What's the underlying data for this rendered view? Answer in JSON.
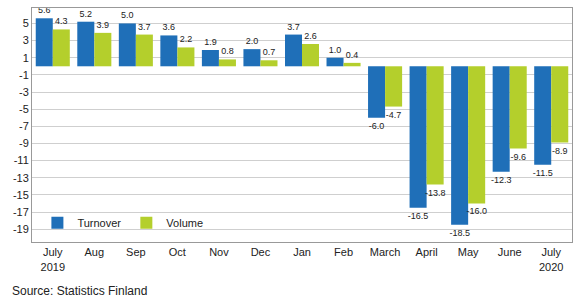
{
  "chart_data": {
    "type": "bar",
    "categories": [
      "July\n2019",
      "Aug",
      "Sep",
      "Oct",
      "Nov",
      "Dec",
      "Jan",
      "Feb",
      "March",
      "April",
      "May",
      "June",
      "July\n2020"
    ],
    "series": [
      {
        "name": "Turnover",
        "color": "#1f6fb8",
        "values": [
          5.6,
          5.2,
          5.0,
          3.6,
          1.9,
          2.0,
          3.7,
          1.0,
          -6.0,
          -16.5,
          -18.5,
          -12.3,
          -11.5
        ],
        "value_labels": [
          "5.6",
          "5.2",
          "5.0",
          "3.6",
          "1.9",
          "2.0",
          "3.7",
          "1.0",
          "-6.0",
          "-16.5",
          "-18.5",
          "-12.3",
          "-11.5"
        ]
      },
      {
        "name": "Volume",
        "color": "#b4cf2c",
        "values": [
          4.3,
          3.9,
          3.7,
          2.2,
          0.8,
          0.7,
          2.6,
          0.4,
          -4.7,
          -13.8,
          -16.0,
          -9.6,
          -8.9
        ],
        "value_labels": [
          "4.3",
          "3.9",
          "3.7",
          "2.2",
          "0.8",
          "0.7",
          "2.6",
          "0.4",
          "-4.7",
          "-13.8",
          "-16.0",
          "-9.6",
          "-8.9"
        ]
      }
    ],
    "ylim": [
      -20.5,
      6.8
    ],
    "yticks": [
      5,
      3,
      1,
      -1,
      -3,
      -5,
      -7,
      -9,
      -11,
      -13,
      -15,
      -17,
      -19
    ],
    "grid": true,
    "legend": "lower left",
    "data_labels": true,
    "source": "Source: Statistics Finland"
  }
}
